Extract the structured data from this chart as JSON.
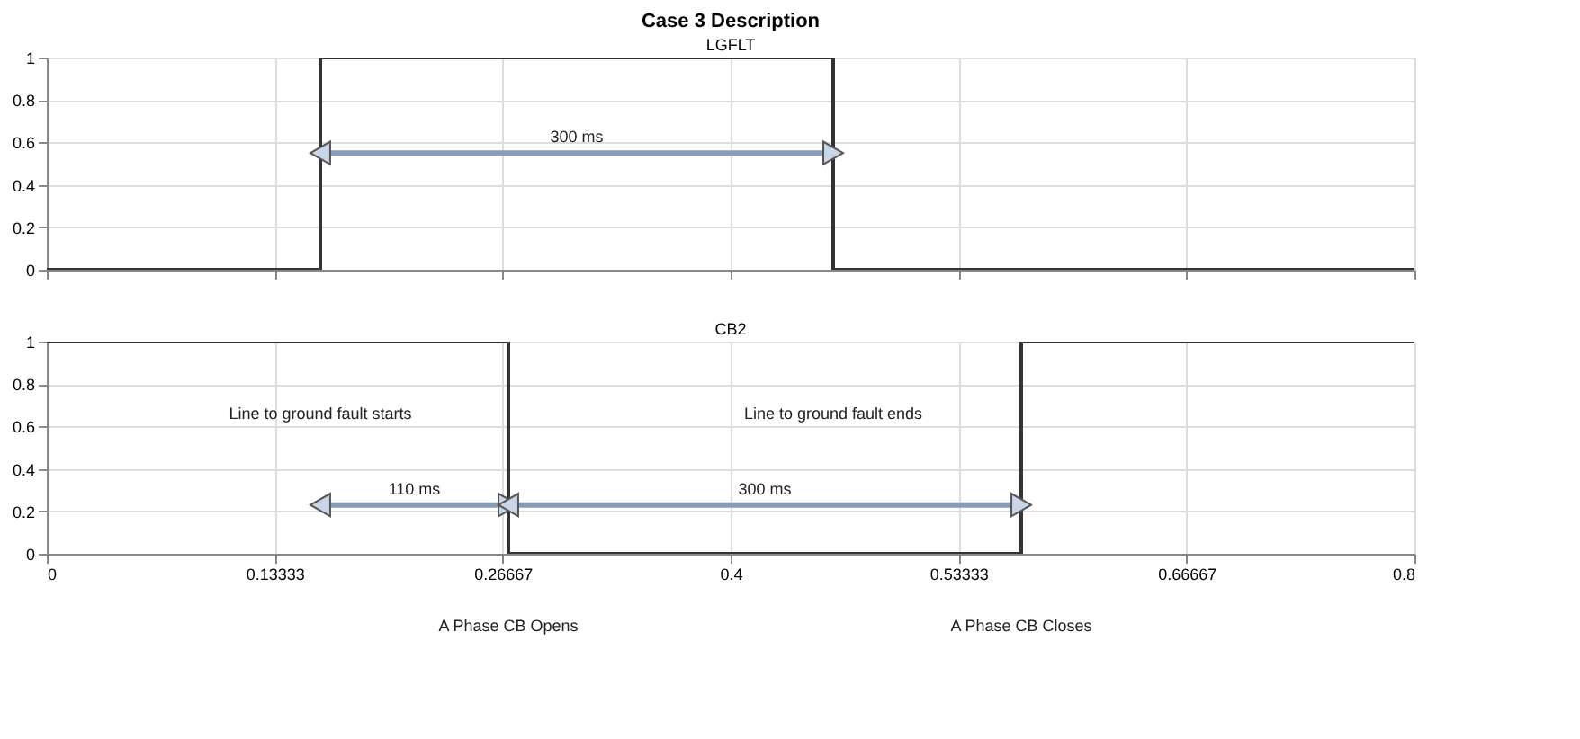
{
  "chart_data": [
    {
      "type": "step",
      "title": "Case 3 Description",
      "x": [
        0,
        0.16,
        0.46,
        0.8
      ],
      "series": [
        {
          "name": "LGFLT",
          "color": "#333333",
          "values": [
            0,
            1,
            0,
            0
          ]
        }
      ],
      "xlim": [
        0,
        0.8
      ],
      "xticks": [
        0,
        0.13333,
        0.26667,
        0.4,
        0.53333,
        0.66667,
        0.8
      ],
      "ylim": [
        0,
        1
      ],
      "yticks": [
        0,
        0.2,
        0.4,
        0.6,
        0.8,
        1
      ],
      "grid": true,
      "tick_labels": "y",
      "annotations": [
        "300 ms"
      ]
    },
    {
      "type": "step",
      "x": [
        0,
        0.27,
        0.57,
        0.8
      ],
      "series": [
        {
          "name": "CB2",
          "color": "#333333",
          "values": [
            1,
            0,
            1,
            1
          ]
        }
      ],
      "xlim": [
        0,
        0.8
      ],
      "xticks": [
        0,
        0.13333,
        0.26667,
        0.4,
        0.53333,
        0.66667,
        0.8
      ],
      "ylim": [
        0,
        1
      ],
      "yticks": [
        0,
        0.2,
        0.4,
        0.6,
        0.8,
        1
      ],
      "grid": true,
      "annotations": [
        "Line to ground fault starts",
        "Line to ground fault ends",
        "110 ms",
        "300 ms",
        "A Phase CB Opens",
        "A Phase CB Closes"
      ]
    }
  ]
}
